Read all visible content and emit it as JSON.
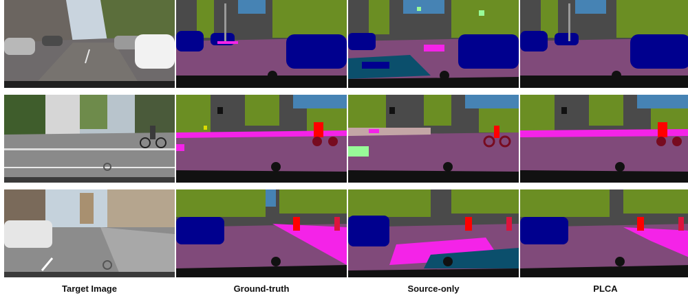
{
  "columns": [
    "Target Image",
    "Ground-truth",
    "Source-only",
    "PLCA"
  ],
  "rows": 3,
  "palette": {
    "road": "#804a7a",
    "sky": "#4683b4",
    "vegetation": "#6b8e23",
    "building": "#4a4a4a",
    "car": "#00008e",
    "sidewalk": "#f423e8",
    "person": "#dc143c",
    "rider": "#ff0000",
    "bicycle": "#770b20",
    "terrain": "#98fb98",
    "pole": "#999999",
    "traffic_sign": "#dcdc00",
    "ego_vehicle": "#111111",
    "noise": "#0b4f6c",
    "wall": "#c4a6a6"
  }
}
